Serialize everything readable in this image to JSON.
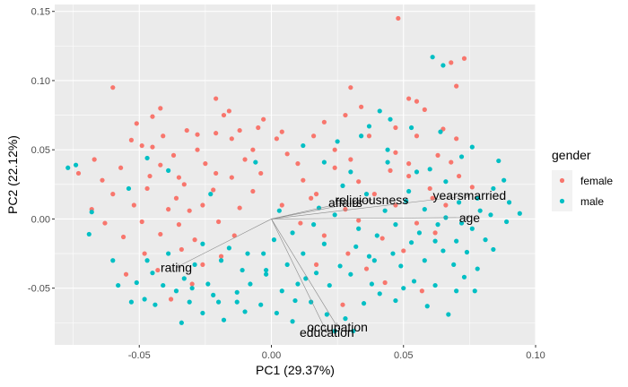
{
  "chart_data": {
    "type": "scatter",
    "title": "",
    "xlabel": "PC1 (29.37%)",
    "ylabel": "PC2 (22.12%)",
    "xlim": [
      -0.082,
      0.1
    ],
    "ylim": [
      -0.091,
      0.155
    ],
    "x_ticks": [
      -0.05,
      0.0,
      0.05,
      0.1
    ],
    "x_tick_labels": [
      "-0.05",
      "0.00",
      "0.05",
      "0.10"
    ],
    "y_ticks": [
      -0.05,
      0.0,
      0.05,
      0.1,
      0.15
    ],
    "y_tick_labels": [
      "-0.05",
      "0.00",
      "0.05",
      "0.10",
      "0.15"
    ],
    "grid": true,
    "legend": {
      "title": "gender",
      "position": "right",
      "entries": [
        {
          "label": "female",
          "color": "#F8766D"
        },
        {
          "label": "male",
          "color": "#00BFC4"
        }
      ]
    },
    "loadings": [
      {
        "label": "years married",
        "text": "yearsmarried",
        "x": 0.075,
        "y": 0.017
      },
      {
        "label": "age",
        "text": "age",
        "x": 0.075,
        "y": 0.001
      },
      {
        "label": "religiousness",
        "text": "religiousness",
        "x": 0.038,
        "y": 0.014
      },
      {
        "label": "affairs",
        "text": "affairs",
        "x": 0.028,
        "y": 0.012
      },
      {
        "label": "rating",
        "text": "rating",
        "x": -0.036,
        "y": -0.035
      },
      {
        "label": "occupation",
        "text": "occupation",
        "x": 0.025,
        "y": -0.078
      },
      {
        "label": "education",
        "text": "education",
        "x": 0.021,
        "y": -0.082
      }
    ],
    "series": [
      {
        "name": "female",
        "color": "#F8766D",
        "points": [
          [
            0.048,
            0.145
          ],
          [
            -0.06,
            0.095
          ],
          [
            0.073,
            0.116
          ],
          [
            0.068,
            0.113
          ],
          [
            0.052,
            0.087
          ],
          [
            0.07,
            0.096
          ],
          [
            -0.021,
            0.087
          ],
          [
            -0.042,
            0.08
          ],
          [
            -0.045,
            0.074
          ],
          [
            -0.016,
            0.078
          ],
          [
            0.03,
            0.095
          ],
          [
            0.055,
            0.085
          ],
          [
            -0.003,
            0.072
          ],
          [
            -0.018,
            0.075
          ],
          [
            0.004,
            0.063
          ],
          [
            0.028,
            0.075
          ],
          [
            -0.028,
            0.061
          ],
          [
            -0.012,
            0.064
          ],
          [
            0.047,
            0.066
          ],
          [
            0.065,
            0.065
          ],
          [
            -0.051,
            0.069
          ],
          [
            -0.032,
            0.064
          ],
          [
            -0.021,
            0.062
          ],
          [
            0.016,
            0.06
          ],
          [
            -0.053,
            0.057
          ],
          [
            -0.041,
            0.06
          ],
          [
            -0.015,
            0.058
          ],
          [
            0.002,
            0.058
          ],
          [
            0.037,
            0.06
          ],
          [
            0.055,
            0.06
          ],
          [
            -0.067,
            0.043
          ],
          [
            -0.049,
            0.053
          ],
          [
            -0.037,
            0.046
          ],
          [
            -0.028,
            0.05
          ],
          [
            -0.007,
            0.05
          ],
          [
            0.024,
            0.05
          ],
          [
            0.047,
            0.048
          ],
          [
            0.063,
            0.046
          ],
          [
            -0.073,
            0.033
          ],
          [
            -0.057,
            0.037
          ],
          [
            -0.042,
            0.039
          ],
          [
            -0.025,
            0.04
          ],
          [
            -0.01,
            0.043
          ],
          [
            0.01,
            0.04
          ],
          [
            0.03,
            0.043
          ],
          [
            0.052,
            0.04
          ],
          [
            0.068,
            0.041
          ],
          [
            -0.064,
            0.028
          ],
          [
            -0.046,
            0.031
          ],
          [
            -0.033,
            0.025
          ],
          [
            -0.021,
            0.033
          ],
          [
            -0.004,
            0.033
          ],
          [
            0.012,
            0.028
          ],
          [
            0.033,
            0.027
          ],
          [
            0.052,
            0.031
          ],
          [
            0.071,
            0.031
          ],
          [
            -0.06,
            0.018
          ],
          [
            -0.047,
            0.022
          ],
          [
            -0.036,
            0.015
          ],
          [
            -0.022,
            0.021
          ],
          [
            -0.007,
            0.02
          ],
          [
            0.017,
            0.018
          ],
          [
            0.039,
            0.018
          ],
          [
            0.06,
            0.022
          ],
          [
            0.076,
            0.023
          ],
          [
            -0.068,
            0.007
          ],
          [
            -0.052,
            0.01
          ],
          [
            -0.039,
            0.007
          ],
          [
            -0.026,
            0.01
          ],
          [
            -0.012,
            0.008
          ],
          [
            0.004,
            0.01
          ],
          [
            0.028,
            0.007
          ],
          [
            0.047,
            0.01
          ],
          [
            0.066,
            0.01
          ],
          [
            -0.063,
            -0.003
          ],
          [
            -0.049,
            -0.002
          ],
          [
            -0.035,
            -0.004
          ],
          [
            -0.02,
            -0.002
          ],
          [
            0.011,
            -0.003
          ],
          [
            0.033,
            -0.001
          ],
          [
            0.055,
            -0.003
          ],
          [
            -0.056,
            -0.013
          ],
          [
            -0.042,
            -0.011
          ],
          [
            -0.029,
            -0.015
          ],
          [
            -0.014,
            -0.012
          ],
          [
            0.02,
            -0.012
          ],
          [
            0.042,
            -0.014
          ],
          [
            0.062,
            -0.01
          ],
          [
            -0.048,
            -0.025
          ],
          [
            -0.034,
            -0.022
          ],
          [
            -0.019,
            -0.027
          ],
          [
            0.029,
            -0.025
          ],
          [
            0.05,
            -0.023
          ],
          [
            -0.043,
            -0.037
          ],
          [
            -0.026,
            -0.033
          ],
          [
            0.017,
            -0.033
          ],
          [
            0.036,
            -0.036
          ],
          [
            -0.03,
            -0.047
          ],
          [
            0.043,
            -0.046
          ],
          [
            0.057,
            -0.052
          ],
          [
            -0.055,
            -0.04
          ],
          [
            -0.038,
            -0.058
          ],
          [
            0.027,
            -0.062
          ],
          [
            0.02,
            0.07
          ],
          [
            -0.035,
            0.03
          ],
          [
            0.006,
            0.047
          ],
          [
            0.045,
            0.035
          ],
          [
            0.015,
            0.015
          ],
          [
            -0.005,
            0.066
          ],
          [
            0.034,
            0.081
          ],
          [
            0.058,
            0.079
          ],
          [
            -0.045,
            0.052
          ],
          [
            -0.015,
            0.03
          ],
          [
            0.024,
            0.037
          ],
          [
            0.061,
            0.015
          ],
          [
            0.07,
            0.058
          ],
          [
            -0.031,
            0.006
          ]
        ]
      },
      {
        "name": "male",
        "color": "#00BFC4",
        "points": [
          [
            -0.074,
            0.039
          ],
          [
            -0.077,
            0.037
          ],
          [
            0.061,
            0.117
          ],
          [
            0.065,
            0.111
          ],
          [
            0.045,
            0.072
          ],
          [
            0.037,
            0.067
          ],
          [
            0.064,
            0.063
          ],
          [
            -0.069,
            -0.011
          ],
          [
            -0.068,
            0.005
          ],
          [
            -0.054,
            0.022
          ],
          [
            -0.039,
            0.035
          ],
          [
            0.034,
            0.06
          ],
          [
            0.044,
            0.05
          ],
          [
            0.06,
            0.036
          ],
          [
            0.076,
            0.052
          ],
          [
            0.02,
            0.041
          ],
          [
            0.03,
            0.034
          ],
          [
            0.052,
            0.02
          ],
          [
            0.066,
            0.027
          ],
          [
            0.084,
            0.022
          ],
          [
            0.09,
            0.012
          ],
          [
            0.094,
            0.004
          ],
          [
            0.083,
            0.003
          ],
          [
            0.078,
            0.015
          ],
          [
            0.072,
            -0.003
          ],
          [
            0.07,
            -0.016
          ],
          [
            0.063,
            -0.004
          ],
          [
            0.056,
            -0.01
          ],
          [
            0.047,
            -0.004
          ],
          [
            0.04,
            -0.012
          ],
          [
            0.032,
            -0.02
          ],
          [
            0.02,
            -0.018
          ],
          [
            0.012,
            -0.025
          ],
          [
            0.006,
            -0.033
          ],
          [
            -0.002,
            -0.04
          ],
          [
            -0.008,
            -0.047
          ],
          [
            -0.013,
            -0.053
          ],
          [
            -0.02,
            -0.06
          ],
          [
            -0.026,
            -0.068
          ],
          [
            -0.034,
            -0.075
          ],
          [
            -0.018,
            -0.073
          ],
          [
            0.002,
            -0.068
          ],
          [
            0.008,
            -0.074
          ],
          [
            0.015,
            -0.06
          ],
          [
            0.021,
            -0.069
          ],
          [
            0.028,
            -0.072
          ],
          [
            0.035,
            -0.061
          ],
          [
            0.041,
            -0.054
          ],
          [
            0.047,
            -0.059
          ],
          [
            0.054,
            -0.045
          ],
          [
            0.062,
            -0.048
          ],
          [
            0.07,
            -0.052
          ],
          [
            0.077,
            -0.052
          ],
          [
            0.078,
            -0.036
          ],
          [
            0.069,
            -0.033
          ],
          [
            0.058,
            -0.03
          ],
          [
            0.049,
            -0.034
          ],
          [
            0.039,
            -0.03
          ],
          [
            0.03,
            -0.04
          ],
          [
            0.022,
            -0.048
          ],
          [
            0.013,
            -0.043
          ],
          [
            0.004,
            -0.052
          ],
          [
            -0.004,
            -0.062
          ],
          [
            -0.011,
            -0.037
          ],
          [
            -0.019,
            -0.03
          ],
          [
            -0.026,
            -0.018
          ],
          [
            -0.033,
            -0.043
          ],
          [
            -0.041,
            -0.048
          ],
          [
            -0.048,
            -0.058
          ],
          [
            -0.053,
            -0.06
          ],
          [
            -0.051,
            -0.046
          ],
          [
            -0.045,
            -0.039
          ],
          [
            -0.039,
            -0.025
          ],
          [
            -0.029,
            -0.033
          ],
          [
            -0.024,
            -0.047
          ],
          [
            -0.016,
            -0.021
          ],
          [
            -0.009,
            -0.025
          ],
          [
            0.001,
            -0.015
          ],
          [
            0.008,
            -0.01
          ],
          [
            0.016,
            -0.004
          ],
          [
            0.024,
            0.003
          ],
          [
            0.033,
            -0.007
          ],
          [
            0.043,
            0.006
          ],
          [
            0.051,
            0.013
          ],
          [
            0.058,
            0.007
          ],
          [
            0.066,
            0.001
          ],
          [
            0.071,
            0.012
          ],
          [
            0.076,
            -0.007
          ],
          [
            0.081,
            -0.015
          ],
          [
            0.084,
            -0.022
          ],
          [
            0.074,
            -0.024
          ],
          [
            0.065,
            -0.023
          ],
          [
            0.053,
            -0.017
          ],
          [
            0.046,
            -0.025
          ],
          [
            0.037,
            -0.027
          ],
          [
            0.026,
            -0.034
          ],
          [
            0.017,
            -0.039
          ],
          [
            0.01,
            -0.047
          ],
          [
            -0.003,
            -0.025
          ],
          [
            -0.013,
            -0.06
          ],
          [
            -0.022,
            -0.055
          ],
          [
            -0.031,
            -0.06
          ],
          [
            -0.036,
            -0.052
          ],
          [
            -0.044,
            -0.062
          ],
          [
            -0.058,
            -0.048
          ],
          [
            -0.06,
            -0.03
          ],
          [
            -0.047,
            -0.03
          ],
          [
            0.012,
            0.053
          ],
          [
            0.025,
            0.056
          ],
          [
            0.041,
            0.078
          ],
          [
            0.053,
            0.066
          ],
          [
            0.072,
            0.045
          ],
          [
            0.086,
            0.042
          ],
          [
            0.088,
            0.028
          ],
          [
            0.044,
            0.041
          ],
          [
            0.036,
            0.018
          ],
          [
            0.027,
            0.024
          ],
          [
            0.018,
            0.008
          ],
          [
            0.05,
            -0.05
          ],
          [
            0.059,
            -0.063
          ],
          [
            0.067,
            -0.069
          ],
          [
            0.031,
            -0.081
          ],
          [
            0.024,
            -0.081
          ],
          [
            -0.03,
            -0.05
          ],
          [
            -0.01,
            -0.067
          ],
          [
            0.009,
            -0.059
          ],
          [
            -0.002,
            -0.037
          ],
          [
            0.062,
            -0.016
          ],
          [
            0.079,
            0.006
          ],
          [
            0.089,
            -0.002
          ],
          [
            0.055,
            0.034
          ],
          [
            -0.006,
            0.041
          ],
          [
            -0.023,
            0.018
          ],
          [
            -0.047,
            0.044
          ],
          [
            0.003,
            0.006
          ],
          [
            0.038,
            -0.047
          ],
          [
            0.073,
            -0.042
          ]
        ]
      }
    ]
  }
}
